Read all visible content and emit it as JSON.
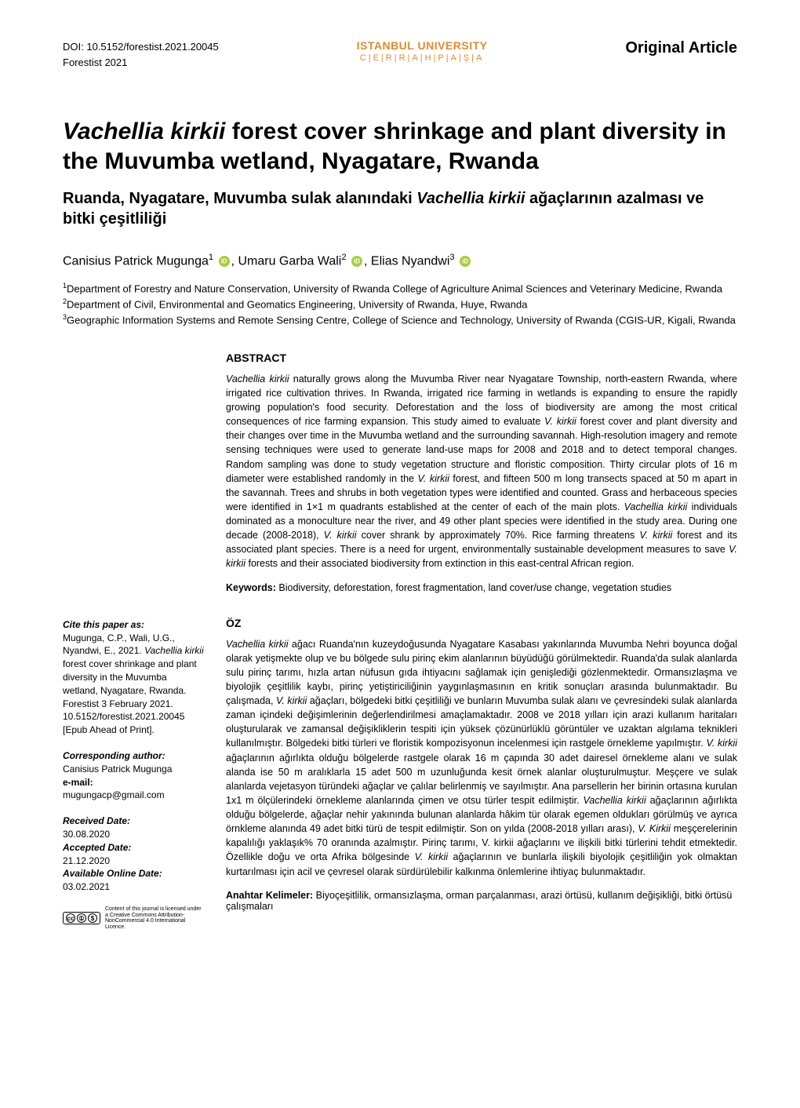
{
  "header": {
    "doi": "DOI: 10.5152/forestist.2021.20045",
    "journal": "Forestist 2021",
    "university_name": "ISTANBUL UNIVERSITY",
    "university_sub": "C|E|R|R|A|H|P|A|Ş|A",
    "article_type": "Original Article"
  },
  "title": {
    "species": "Vachellia kirkii",
    "rest": " forest cover shrinkage and plant diversity in the Muvumba wetland, Nyagatare, Rwanda"
  },
  "subtitle": {
    "prefix": "Ruanda, Nyagatare, Muvumba sulak alanındaki ",
    "species": "Vachellia kirkii",
    "suffix": " ağaçlarının azalması ve bitki çeşitliliği"
  },
  "authors": {
    "a1_name": "Canisius Patrick Mugunga",
    "a1_sup": "1",
    "a2_name": "Umaru Garba Wali",
    "a2_sup": "2",
    "a3_name": "Elias Nyandwi",
    "a3_sup": "3"
  },
  "affiliations": {
    "a1": "Department of Forestry and Nature Conservation, University of Rwanda College of Agriculture Animal Sciences and Veterinary Medicine, Rwanda",
    "a2": "Department of Civil, Environmental and Geomatics Engineering, University of Rwanda, Huye, Rwanda",
    "a3": "Geographic Information Systems and Remote Sensing Centre, College of Science and Technology, University of Rwanda (CGIS-UR, Kigali, Rwanda"
  },
  "abstract": {
    "heading": "ABSTRACT",
    "kw_label": "Keywords: ",
    "kw_text": "Biodiversity, deforestation, forest fragmentation, land cover/use change, vegetation studies"
  },
  "oz": {
    "heading": "ÖZ",
    "kw_label": "Anahtar Kelimeler: ",
    "kw_text": "Biyoçeşitlilik, ormansızlaşma, orman parçalanması, arazi örtüsü,  kullanım değişikliği, bitki örtüsü çalışmaları"
  },
  "sidebar": {
    "cite_label": "Cite this paper as:",
    "cite_text_1": "Mugunga, C.P., Wali, U.G., Nyandwi, E., 2021. ",
    "cite_species": "Vachellia kirkii",
    "cite_text_2": " forest cover shrinkage and plant diversity in the Muvumba wetland, Nyagatare, Rwanda. Forestist 3 February 2021. 10.5152/forestist.2021.20045 [Epub Ahead of Print].",
    "corr_label": "Corresponding author:",
    "corr_name": "Canisius Patrick Mugunga",
    "email_label": "e-mail:",
    "email": "mugungacp@gmail.com",
    "recv_label": "Received Date:",
    "recv_date": "30.08.2020",
    "acc_label": "Accepted Date:",
    "acc_date": "21.12.2020",
    "online_label": "Available Online Date:",
    "online_date": "03.02.2021",
    "license_text": "Content of this journal is licensed under a Creative Commons Attribution-NonCommercial 4.0 International Licence."
  },
  "colors": {
    "accent_orange": "#e08b2c",
    "orcid_green": "#a6ce39",
    "text": "#000000",
    "background": "#ffffff"
  }
}
